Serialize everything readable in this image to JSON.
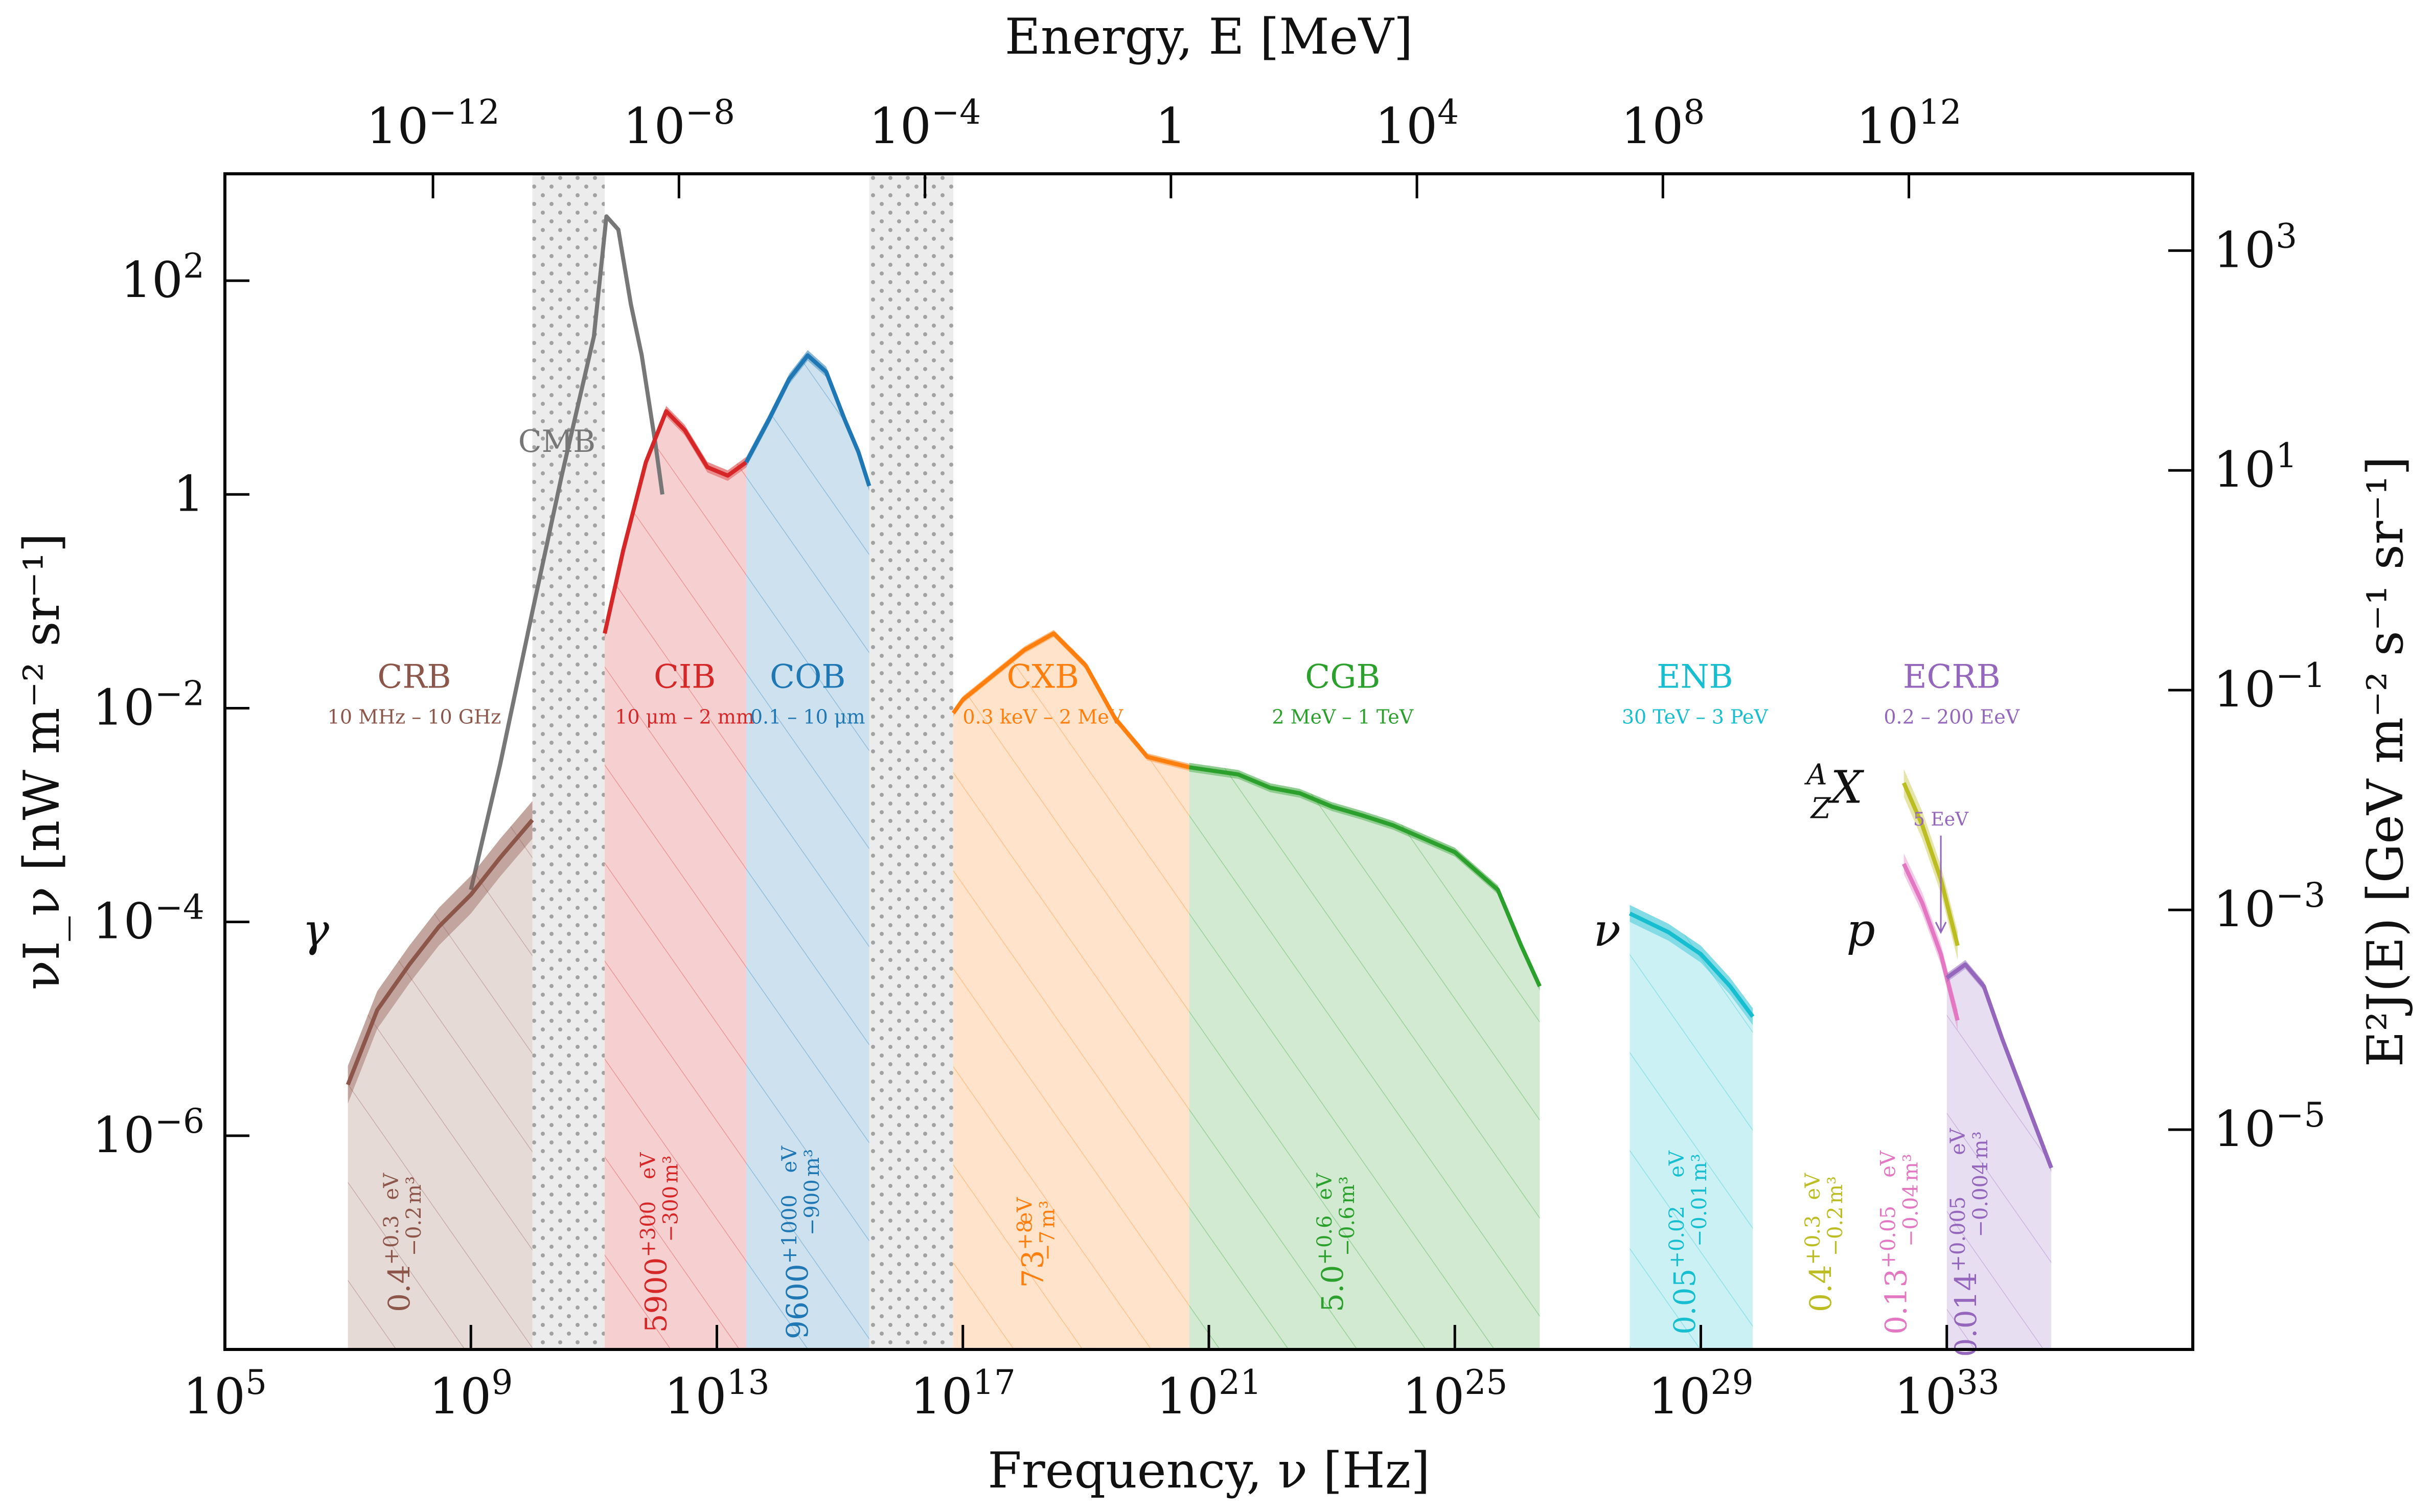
{
  "chart_data": {
    "type": "area",
    "xlabel": "Frequency, ν [Hz]",
    "ylabel": "νI_ν [nW m⁻² sr⁻¹]",
    "x2label": "Energy, E [MeV]",
    "y2label": "E²J(E) [GeV m⁻² s⁻¹ sr⁻¹]",
    "xscale": "log",
    "yscale": "log",
    "xlim": [
      100000,
      1e+37
    ],
    "ylim": [
      1e-08,
      1000
    ],
    "y2lim": [
      1e-07,
      5000
    ],
    "x_ticks": [
      {
        "value": 100000.0,
        "base": "10",
        "exp": "5"
      },
      {
        "value": 1000000000.0,
        "base": "10",
        "exp": "9"
      },
      {
        "value": 10000000000000.0,
        "base": "10",
        "exp": "13"
      },
      {
        "value": 1e+17,
        "base": "10",
        "exp": "17"
      },
      {
        "value": 1e+21,
        "base": "10",
        "exp": "21"
      },
      {
        "value": 1e+25,
        "base": "10",
        "exp": "25"
      },
      {
        "value": 1e+29,
        "base": "10",
        "exp": "29"
      },
      {
        "value": 1e+33,
        "base": "10",
        "exp": "33"
      }
    ],
    "y_ticks": [
      {
        "value": 100,
        "base": "10",
        "exp": "2"
      },
      {
        "value": 1,
        "base": "1",
        "exp": ""
      },
      {
        "value": 0.01,
        "base": "10",
        "exp": "−2"
      },
      {
        "value": 0.0001,
        "base": "10",
        "exp": "−4"
      },
      {
        "value": 1e-06,
        "base": "10",
        "exp": "−6"
      }
    ],
    "x2_ticks": [
      {
        "value": 1e-12,
        "base": "10",
        "exp": "−12"
      },
      {
        "value": 1e-08,
        "base": "10",
        "exp": "−8"
      },
      {
        "value": 0.0001,
        "base": "10",
        "exp": "−4"
      },
      {
        "value": 1,
        "base": "1",
        "exp": ""
      },
      {
        "value": 10000,
        "base": "10",
        "exp": "4"
      },
      {
        "value": 100000000.0,
        "base": "10",
        "exp": "8"
      },
      {
        "value": 1000000000000.0,
        "base": "10",
        "exp": "12"
      }
    ],
    "y2_ticks": [
      {
        "value": 1000,
        "base": "10",
        "exp": "3"
      },
      {
        "value": 10,
        "base": "10",
        "exp": "1"
      },
      {
        "value": 0.1,
        "base": "10",
        "exp": "−1"
      },
      {
        "value": 0.001,
        "base": "10",
        "exp": "−3"
      },
      {
        "value": 1e-05,
        "base": "10",
        "exp": "−5"
      }
    ],
    "bands": [
      {
        "name": "CRB",
        "range": "10 MHz – 10 GHz",
        "color": "#8c564b",
        "xmin": 10000000.0,
        "xmax": 10000000000.0,
        "density": "0.4",
        "up": "+0.3",
        "down": "−0.2",
        "unit_top": "eV",
        "unit_bottom": "m³",
        "label_x": 120000000.0,
        "label_y": 0.01,
        "density_x": 100000000.0,
        "density_y": 1e-07
      },
      {
        "name": "CIB",
        "range": "10 μm – 2 mm",
        "color": "#d62728",
        "xmin": 150000000000.0,
        "xmax": 30000000000000.0,
        "density": "5900",
        "up": "+300",
        "down": "−300",
        "unit_top": "eV",
        "unit_bottom": "m³",
        "label_x": 3000000000000.0,
        "label_y": 0.01,
        "density_x": 1500000000000.0,
        "density_y": 1e-07
      },
      {
        "name": "COB",
        "range": "0.1 – 10 μm",
        "color": "#1f77b4",
        "xmin": 30000000000000.0,
        "xmax": 3000000000000000.0,
        "density": "9600",
        "up": "+1000",
        "down": "−900",
        "unit_top": "eV",
        "unit_bottom": "m³",
        "label_x": 300000000000000.0,
        "label_y": 0.01,
        "density_x": 300000000000000.0,
        "density_y": 1e-07
      },
      {
        "name": "CXB",
        "range": "0.3 keV – 2 MeV",
        "color": "#ff7f0e",
        "xmin": 7e+16,
        "xmax": 4.8e+20,
        "density": "73",
        "up": "+8",
        "down": "−7",
        "unit_top": "eV",
        "unit_bottom": "m³",
        "label_x": 2e+18,
        "label_y": 0.01,
        "density_x": 2e+18,
        "density_y": 1e-07
      },
      {
        "name": "CGB",
        "range": "2 MeV – 1 TeV",
        "color": "#2ca02c",
        "xmin": 4.8e+20,
        "xmax": 2.4e+26,
        "density": "5.0",
        "up": "+0.6",
        "down": "−0.6",
        "unit_top": "eV",
        "unit_bottom": "m³",
        "label_x": 1.5e+23,
        "label_y": 0.01,
        "density_x": 1.5e+23,
        "density_y": 1e-07
      },
      {
        "name": "ENB",
        "range": "30 TeV – 3 PeV",
        "color": "#17becf",
        "xmin": 7e+27,
        "xmax": 7e+29,
        "density": "0.05",
        "up": "+0.02",
        "down": "−0.01",
        "unit_top": "eV",
        "unit_bottom": "m³",
        "label_x": 8e+28,
        "label_y": 0.01,
        "density_x": 8e+28,
        "density_y": 1e-07
      },
      {
        "name": "ECRB",
        "range": "0.2 – 200 EeV",
        "color": "#9467bd",
        "xmin": 1e+33,
        "xmax": 5e+34,
        "density": "0.014",
        "up": "+0.005",
        "down": "−0.004",
        "unit_top": "eV",
        "unit_bottom": "m³",
        "label_x": 1.2e+33,
        "label_y": 0.01,
        "density_x": 3e+33,
        "density_y": 1e-07
      }
    ],
    "gap_fills": [
      {
        "xmin": 10000000000.0,
        "xmax": 150000000000.0
      },
      {
        "xmin": 3000000000000000.0,
        "xmax": 7e+16
      }
    ],
    "extra_densities": [
      {
        "density": "0.4",
        "up": "+0.3",
        "down": "−0.2",
        "unit_top": "eV",
        "unit_bottom": "m³",
        "color": "#bcbd22",
        "x": 1.3e+31,
        "y": 1e-07
      },
      {
        "density": "0.13",
        "up": "+0.05",
        "down": "−0.04",
        "unit_top": "eV",
        "unit_bottom": "m³",
        "color": "#e377c2",
        "x": 2.2e+32,
        "y": 1e-07
      }
    ],
    "series": [
      {
        "name": "CMB",
        "color": "#777777",
        "x": [
          1000000000.0,
          1000000000.0,
          3000000000.0,
          10000000000.0,
          30000000000.0,
          100000000000.0,
          160000000000.0,
          250000000000.0,
          400000000000.0,
          600000000000.0,
          1000000000000.0,
          1300000000000.0
        ],
        "y": [
          0.0002,
          0.0002,
          0.003,
          0.08,
          1.5,
          30,
          400,
          300,
          60,
          20,
          3,
          1
        ]
      },
      {
        "name": "CRB",
        "color": "#8c564b",
        "band": 0.5,
        "x": [
          10000000.0,
          30000000.0,
          100000000.0,
          300000000.0,
          1000000000.0,
          3000000000.0,
          10000000000.0
        ],
        "y": [
          3e-06,
          1.5e-05,
          4e-05,
          9e-05,
          0.00018,
          0.0004,
          0.0009
        ]
      },
      {
        "name": "CIB",
        "color": "#d62728",
        "band": 0.12,
        "x": [
          150000000000.0,
          300000000000.0,
          700000000000.0,
          1500000000000.0,
          3000000000000.0,
          7000000000000.0,
          15000000000000.0,
          30000000000000.0
        ],
        "y": [
          0.05,
          0.3,
          2.0,
          6.0,
          4.0,
          1.8,
          1.5,
          2.0
        ]
      },
      {
        "name": "COB",
        "color": "#1f77b4",
        "band": 0.12,
        "x": [
          30000000000000.0,
          70000000000000.0,
          150000000000000.0,
          300000000000000.0,
          600000000000000.0,
          1200000000000000.0,
          2000000000000000.0,
          3000000000000000.0
        ],
        "y": [
          2.0,
          5.0,
          12.0,
          20.0,
          14.0,
          5.0,
          2.5,
          1.2
        ]
      },
      {
        "name": "CXB",
        "color": "#ff7f0e",
        "band": 0.08,
        "x": [
          7e+16,
          1e+17,
          3e+17,
          1e+18,
          3e+18,
          1e+19,
          3e+19,
          1e+20,
          4.8e+20
        ],
        "y": [
          0.009,
          0.012,
          0.02,
          0.035,
          0.05,
          0.025,
          0.008,
          0.0035,
          0.0028
        ]
      },
      {
        "name": "CGB",
        "color": "#2ca02c",
        "band": 0.1,
        "x": [
          4.8e+20,
          3e+21,
          1e+22,
          3e+22,
          1e+23,
          3e+23,
          1e+24,
          1e+25,
          5e+25,
          1.2e+26,
          2.4e+26
        ],
        "y": [
          0.0028,
          0.0024,
          0.0018,
          0.0016,
          0.0012,
          0.001,
          0.0008,
          0.00045,
          0.0002,
          6e-05,
          2.5e-05
        ]
      },
      {
        "name": "ENB",
        "color": "#17becf",
        "band": 0.2,
        "x": [
          7e+27,
          3e+28,
          1e+29,
          3e+29,
          7e+29
        ],
        "y": [
          0.00012,
          8e-05,
          5e-05,
          2.5e-05,
          1.3e-05
        ]
      },
      {
        "name": "Nuclei",
        "color": "#bcbd22",
        "band": 0.35,
        "x": [
          2e+32,
          4e+32,
          8e+32,
          1.5e+33
        ],
        "y": [
          0.002,
          0.0008,
          0.00025,
          6e-05
        ]
      },
      {
        "name": "Protons",
        "color": "#e377c2",
        "band": 0.25,
        "x": [
          2e+32,
          4e+32,
          8e+32,
          1.5e+33
        ],
        "y": [
          0.00035,
          0.00015,
          5e-05,
          1.2e-05
        ]
      },
      {
        "name": "ECRB",
        "color": "#9467bd",
        "band": 0.1,
        "x": [
          1e+33,
          2e+33,
          4e+33,
          8e+33,
          2e+34,
          5e+34
        ],
        "y": [
          3e-05,
          4e-05,
          2.5e-05,
          8e-06,
          2e-06,
          5e-07
        ]
      }
    ],
    "particle_labels": [
      {
        "text": "γ",
        "x": 3000000.0,
        "y": 6e-05
      },
      {
        "text": "ν",
        "x": 3e+27,
        "y": 6e-05
      },
      {
        "text": "p",
        "x": 4e+31,
        "y": 6e-05
      },
      {
        "text": "X",
        "pre_sup": "A",
        "pre_sub": "Z",
        "x": 1.5e+31,
        "y": 0.0013
      }
    ],
    "annotations": [
      {
        "text": "CMB",
        "x": 25000000000.0,
        "y": 2.5,
        "color": "#777777"
      },
      {
        "text": "5 EeV",
        "x": 8e+32,
        "y": 0.0008,
        "color": "#9467bd",
        "arrow_to_x": 8e+32,
        "arrow_to_y": 8e-05
      }
    ],
    "grid": false
  }
}
